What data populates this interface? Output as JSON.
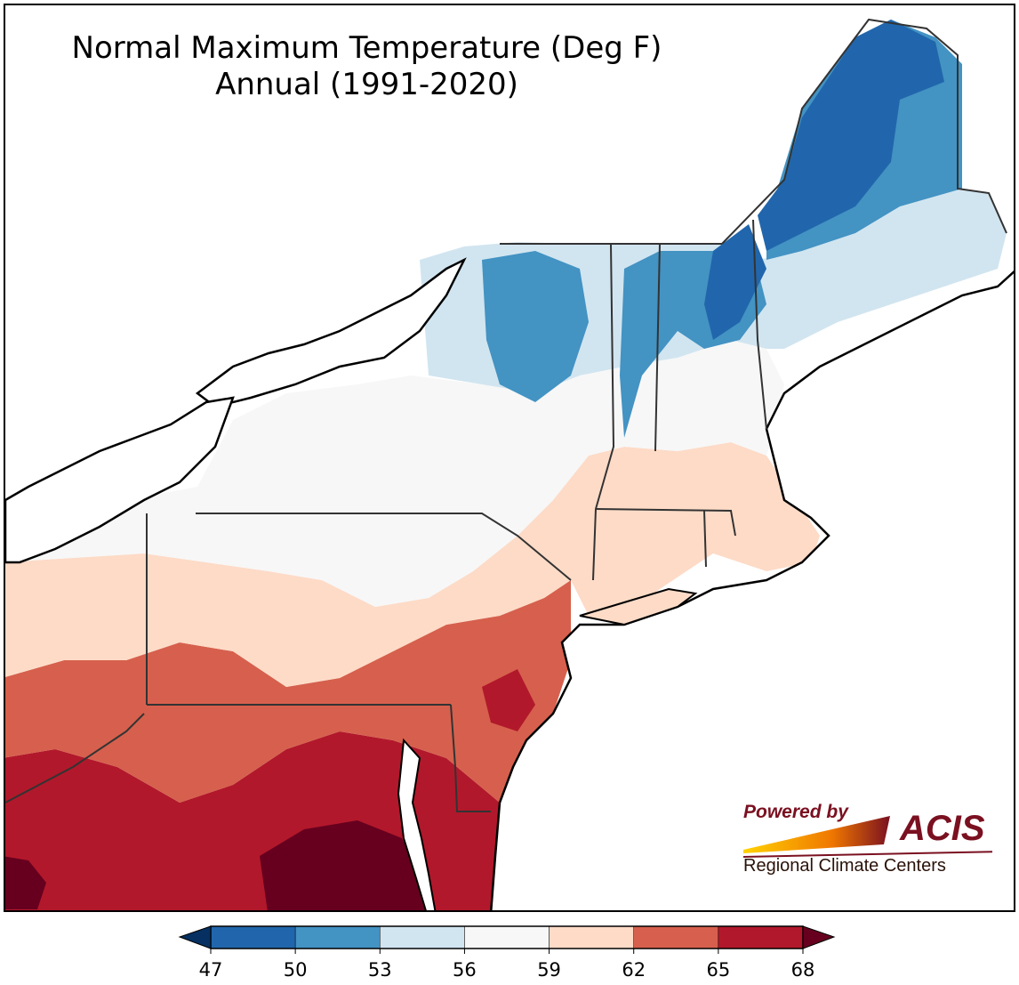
{
  "title": {
    "line1": "Normal Maximum Temperature (Deg F)",
    "line2": "Annual (1991-2020)"
  },
  "legend": {
    "ticks": [
      "47",
      "50",
      "53",
      "56",
      "59",
      "62",
      "65",
      "68"
    ],
    "bins": [
      {
        "from": 47,
        "to": 50,
        "color": "#2166ac"
      },
      {
        "from": 50,
        "to": 53,
        "color": "#4393c3"
      },
      {
        "from": 53,
        "to": 56,
        "color": "#d1e5f0"
      },
      {
        "from": 56,
        "to": 59,
        "color": "#f7f7f7"
      },
      {
        "from": 59,
        "to": 62,
        "color": "#fddbc7"
      },
      {
        "from": 62,
        "to": 65,
        "color": "#d6604d"
      },
      {
        "from": 65,
        "to": 68,
        "color": "#b2182b"
      }
    ],
    "under_color": "#053061",
    "over_color": "#67001f"
  },
  "logo": {
    "powered_by": "Powered by",
    "name": "ACIS",
    "subtitle": "Regional Climate Centers"
  },
  "colors": {
    "lake": "#ffffff",
    "boundary": "#1a1a1a",
    "county_line": "#888888"
  }
}
